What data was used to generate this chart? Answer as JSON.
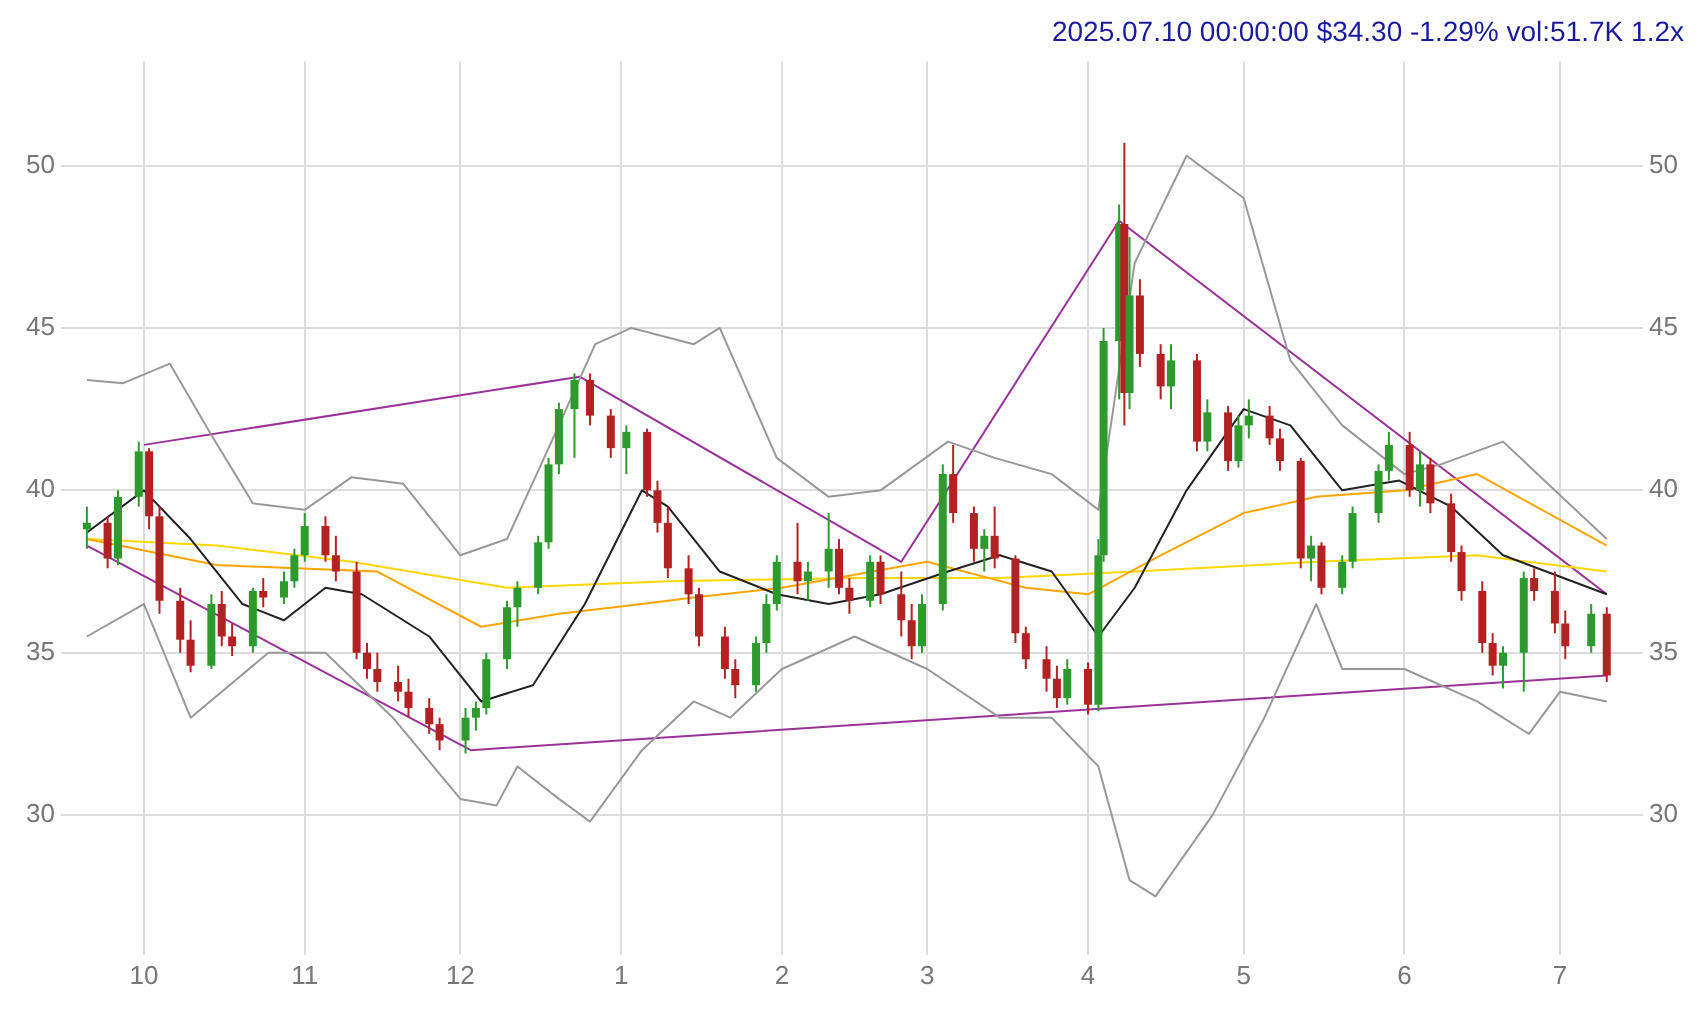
{
  "chart_data": {
    "type": "candlestick",
    "title": "2025.07.10 00:00:00 $34.30 -1.29% vol:51.7K 1.2x",
    "x": [
      "2024-09-20",
      "2024-09-24",
      "2024-09-26",
      "2024-09-30",
      "2024-10-02",
      "2024-10-04",
      "2024-10-08",
      "2024-10-10",
      "2024-10-14",
      "2024-10-16",
      "2024-10-18",
      "2024-10-22",
      "2024-10-24",
      "2024-10-28",
      "2024-10-30",
      "2024-11-01",
      "2024-11-05",
      "2024-11-07",
      "2024-11-11",
      "2024-11-13",
      "2024-11-15",
      "2024-11-19",
      "2024-11-21",
      "2024-11-25",
      "2024-11-27",
      "2024-12-02",
      "2024-12-04",
      "2024-12-06",
      "2024-12-10",
      "2024-12-12",
      "2024-12-16",
      "2024-12-18",
      "2024-12-20",
      "2024-12-23",
      "2024-12-26",
      "2024-12-30",
      "2025-01-02",
      "2025-01-06",
      "2025-01-08",
      "2025-01-10",
      "2025-01-14",
      "2025-01-16",
      "2025-01-21",
      "2025-01-23",
      "2025-01-27",
      "2025-01-29",
      "2025-01-31",
      "2025-02-04",
      "2025-02-06",
      "2025-02-10",
      "2025-02-12",
      "2025-02-14",
      "2025-02-18",
      "2025-02-20",
      "2025-02-24",
      "2025-02-26",
      "2025-02-28",
      "2025-03-04",
      "2025-03-06",
      "2025-03-10",
      "2025-03-12",
      "2025-03-14",
      "2025-03-18",
      "2025-03-20",
      "2025-03-24",
      "2025-03-26",
      "2025-03-28",
      "2025-04-01",
      "2025-04-03",
      "2025-04-04",
      "2025-04-07",
      "2025-04-08",
      "2025-04-09",
      "2025-04-11",
      "2025-04-15",
      "2025-04-17",
      "2025-04-22",
      "2025-04-24",
      "2025-04-28",
      "2025-04-30",
      "2025-05-02",
      "2025-05-06",
      "2025-05-08",
      "2025-05-12",
      "2025-05-14",
      "2025-05-16",
      "2025-05-20",
      "2025-05-22",
      "2025-05-27",
      "2025-05-29",
      "2025-06-02",
      "2025-06-04",
      "2025-06-06",
      "2025-06-10",
      "2025-06-12",
      "2025-06-16",
      "2025-06-18",
      "2025-06-20",
      "2025-06-24",
      "2025-06-26",
      "2025-06-30",
      "2025-07-02",
      "2025-07-07",
      "2025-07-10"
    ],
    "ohlc": [
      [
        38.8,
        39.5,
        38.2,
        39.0
      ],
      [
        39.0,
        39.2,
        37.6,
        37.9
      ],
      [
        37.9,
        40.0,
        37.7,
        39.8
      ],
      [
        39.8,
        41.5,
        39.5,
        41.2
      ],
      [
        41.2,
        41.3,
        38.8,
        39.2
      ],
      [
        39.2,
        39.5,
        36.2,
        36.6
      ],
      [
        36.6,
        37.0,
        35.0,
        35.4
      ],
      [
        35.4,
        36.0,
        34.4,
        34.6
      ],
      [
        34.6,
        36.8,
        34.5,
        36.5
      ],
      [
        36.5,
        36.9,
        35.2,
        35.5
      ],
      [
        35.5,
        35.9,
        34.9,
        35.2
      ],
      [
        35.2,
        37.0,
        35.0,
        36.9
      ],
      [
        36.9,
        37.3,
        36.4,
        36.7
      ],
      [
        36.7,
        37.5,
        36.5,
        37.2
      ],
      [
        37.2,
        38.2,
        37.0,
        38.0
      ],
      [
        38.0,
        39.3,
        37.8,
        38.9
      ],
      [
        38.9,
        39.2,
        37.8,
        38.0
      ],
      [
        38.0,
        38.6,
        37.2,
        37.5
      ],
      [
        37.5,
        37.8,
        34.8,
        35.0
      ],
      [
        35.0,
        35.3,
        34.2,
        34.5
      ],
      [
        34.5,
        35.0,
        33.8,
        34.1
      ],
      [
        34.1,
        34.6,
        33.5,
        33.8
      ],
      [
        33.8,
        34.2,
        33.0,
        33.3
      ],
      [
        33.3,
        33.6,
        32.5,
        32.8
      ],
      [
        32.8,
        33.0,
        32.0,
        32.3
      ],
      [
        32.3,
        33.3,
        31.9,
        33.0
      ],
      [
        33.0,
        33.5,
        32.6,
        33.3
      ],
      [
        33.3,
        35.0,
        33.1,
        34.8
      ],
      [
        34.8,
        36.6,
        34.5,
        36.4
      ],
      [
        36.4,
        37.2,
        35.8,
        37.0
      ],
      [
        37.0,
        38.6,
        36.8,
        38.4
      ],
      [
        38.4,
        41.0,
        38.2,
        40.8
      ],
      [
        40.8,
        42.7,
        40.5,
        42.5
      ],
      [
        42.5,
        43.6,
        41.0,
        43.4
      ],
      [
        43.4,
        43.6,
        42.0,
        42.3
      ],
      [
        42.3,
        42.5,
        41.0,
        41.3
      ],
      [
        41.3,
        42.0,
        40.5,
        41.8
      ],
      [
        41.8,
        41.9,
        39.8,
        40.0
      ],
      [
        40.0,
        40.3,
        38.7,
        39.0
      ],
      [
        39.0,
        39.5,
        37.3,
        37.6
      ],
      [
        37.6,
        38.0,
        36.5,
        36.8
      ],
      [
        36.8,
        37.0,
        35.2,
        35.5
      ],
      [
        35.5,
        35.8,
        34.2,
        34.5
      ],
      [
        34.5,
        34.8,
        33.6,
        34.0
      ],
      [
        34.0,
        35.5,
        33.8,
        35.3
      ],
      [
        35.3,
        36.8,
        35.0,
        36.5
      ],
      [
        36.5,
        38.0,
        36.3,
        37.8
      ],
      [
        37.8,
        39.0,
        36.8,
        37.2
      ],
      [
        37.2,
        37.8,
        36.6,
        37.5
      ],
      [
        37.5,
        39.3,
        37.0,
        38.2
      ],
      [
        38.2,
        38.5,
        36.8,
        37.0
      ],
      [
        37.0,
        37.3,
        36.2,
        36.6
      ],
      [
        36.6,
        38.0,
        36.4,
        37.8
      ],
      [
        37.8,
        38.0,
        36.5,
        36.8
      ],
      [
        36.8,
        37.5,
        35.5,
        36.0
      ],
      [
        36.0,
        36.5,
        34.8,
        35.2
      ],
      [
        35.2,
        36.8,
        35.0,
        36.5
      ],
      [
        36.5,
        40.8,
        36.3,
        40.5
      ],
      [
        40.5,
        41.4,
        39.0,
        39.3
      ],
      [
        39.3,
        39.5,
        37.8,
        38.2
      ],
      [
        38.2,
        38.8,
        37.5,
        38.6
      ],
      [
        38.6,
        39.5,
        37.6,
        37.9
      ],
      [
        37.9,
        38.0,
        35.3,
        35.6
      ],
      [
        35.6,
        35.8,
        34.5,
        34.8
      ],
      [
        34.8,
        35.2,
        33.8,
        34.2
      ],
      [
        34.2,
        34.6,
        33.3,
        33.6
      ],
      [
        33.6,
        34.8,
        33.4,
        34.5
      ],
      [
        34.5,
        34.7,
        33.1,
        33.4
      ],
      [
        33.4,
        38.5,
        33.2,
        38.0
      ],
      [
        38.0,
        45.0,
        37.8,
        44.6
      ],
      [
        44.6,
        48.8,
        42.8,
        48.2
      ],
      [
        48.2,
        50.7,
        42.0,
        43.0
      ],
      [
        43.0,
        47.8,
        42.5,
        46.0
      ],
      [
        46.0,
        46.5,
        43.8,
        44.2
      ],
      [
        44.2,
        44.5,
        42.8,
        43.2
      ],
      [
        43.2,
        44.5,
        42.5,
        44.0
      ],
      [
        44.0,
        44.2,
        41.2,
        41.5
      ],
      [
        41.5,
        42.8,
        41.2,
        42.4
      ],
      [
        42.4,
        42.6,
        40.6,
        40.9
      ],
      [
        40.9,
        42.3,
        40.7,
        42.0
      ],
      [
        42.0,
        42.8,
        41.6,
        42.3
      ],
      [
        42.3,
        42.6,
        41.4,
        41.6
      ],
      [
        41.6,
        41.9,
        40.6,
        40.9
      ],
      [
        40.9,
        41.0,
        37.6,
        37.9
      ],
      [
        37.9,
        38.6,
        37.2,
        38.3
      ],
      [
        38.3,
        38.4,
        36.8,
        37.0
      ],
      [
        37.0,
        38.0,
        36.8,
        37.8
      ],
      [
        37.8,
        39.5,
        37.6,
        39.3
      ],
      [
        39.3,
        40.8,
        39.0,
        40.6
      ],
      [
        40.6,
        41.8,
        40.3,
        41.4
      ],
      [
        41.4,
        41.8,
        39.8,
        40.0
      ],
      [
        40.0,
        41.2,
        39.5,
        40.8
      ],
      [
        40.8,
        41.0,
        39.3,
        39.6
      ],
      [
        39.6,
        39.9,
        37.8,
        38.1
      ],
      [
        38.1,
        38.3,
        36.6,
        36.9
      ],
      [
        36.9,
        37.2,
        35.0,
        35.3
      ],
      [
        35.3,
        35.6,
        34.3,
        34.6
      ],
      [
        34.6,
        35.2,
        33.9,
        35.0
      ],
      [
        35.0,
        37.5,
        33.8,
        37.3
      ],
      [
        37.3,
        37.6,
        36.6,
        36.9
      ],
      [
        36.9,
        37.5,
        35.6,
        35.9
      ],
      [
        35.9,
        36.3,
        34.8,
        35.2
      ],
      [
        35.2,
        36.5,
        35.0,
        36.2
      ],
      [
        36.2,
        36.4,
        34.1,
        34.3
      ]
    ],
    "colors": [
      "#2e9a2e",
      "#b22222",
      "#2e9a2e",
      "#2e9a2e",
      "#b22222",
      "#b22222",
      "#b22222",
      "#b22222",
      "#2e9a2e",
      "#b22222",
      "#b22222",
      "#2e9a2e",
      "#b22222",
      "#2e9a2e",
      "#2e9a2e",
      "#2e9a2e",
      "#b22222",
      "#b22222",
      "#b22222",
      "#b22222",
      "#b22222",
      "#b22222",
      "#b22222",
      "#b22222",
      "#b22222",
      "#2e9a2e",
      "#2e9a2e",
      "#2e9a2e",
      "#2e9a2e",
      "#2e9a2e",
      "#2e9a2e",
      "#2e9a2e",
      "#2e9a2e",
      "#2e9a2e",
      "#b22222",
      "#b22222",
      "#2e9a2e",
      "#b22222",
      "#b22222",
      "#b22222",
      "#b22222",
      "#b22222",
      "#b22222",
      "#b22222",
      "#2e9a2e",
      "#2e9a2e",
      "#2e9a2e",
      "#b22222",
      "#2e9a2e",
      "#2e9a2e",
      "#b22222",
      "#b22222",
      "#2e9a2e",
      "#b22222",
      "#b22222",
      "#b22222",
      "#2e9a2e",
      "#2e9a2e",
      "#b22222",
      "#b22222",
      "#2e9a2e",
      "#b22222",
      "#b22222",
      "#b22222",
      "#b22222",
      "#b22222",
      "#2e9a2e",
      "#b22222",
      "#2e9a2e",
      "#2e9a2e",
      "#2e9a2e",
      "#b22222",
      "#2e9a2e",
      "#b22222",
      "#b22222",
      "#2e9a2e",
      "#b22222",
      "#2e9a2e",
      "#b22222",
      "#2e9a2e",
      "#2e9a2e",
      "#b22222",
      "#b22222",
      "#b22222",
      "#2e9a2e",
      "#b22222",
      "#2e9a2e",
      "#2e9a2e",
      "#2e9a2e",
      "#2e9a2e",
      "#b22222",
      "#2e9a2e",
      "#b22222",
      "#b22222",
      "#b22222",
      "#b22222",
      "#b22222",
      "#2e9a2e",
      "#2e9a2e",
      "#b22222",
      "#b22222",
      "#b22222",
      "#2e9a2e",
      "#b22222"
    ],
    "series": [
      {
        "type": "line",
        "color": "#999999",
        "x": [
          "2024-09-20",
          "2024-09-27",
          "2024-10-06",
          "2024-10-14",
          "2024-10-22",
          "2024-11-01",
          "2024-11-10",
          "2024-11-20",
          "2024-12-01",
          "2024-12-10",
          "2024-12-20",
          "2024-12-27",
          "2025-01-03",
          "2025-01-15",
          "2025-01-20",
          "2025-01-31",
          "2025-02-10",
          "2025-02-20",
          "2025-03-05",
          "2025-03-14",
          "2025-03-25",
          "2025-04-03",
          "2025-04-10",
          "2025-04-20",
          "2025-05-01",
          "2025-05-10",
          "2025-05-20",
          "2025-06-01",
          "2025-06-08",
          "2025-06-20",
          "2025-07-10"
        ],
        "values": [
          43.4,
          43.3,
          43.9,
          41.7,
          39.6,
          39.4,
          40.4,
          40.2,
          38.0,
          38.5,
          42.0,
          44.5,
          45.0,
          44.5,
          45.0,
          41.0,
          39.8,
          40.0,
          41.5,
          41.0,
          40.5,
          39.4,
          47.0,
          50.3,
          49.0,
          44.0,
          42.0,
          40.5,
          40.8,
          41.5,
          38.5
        ]
      },
      {
        "type": "line",
        "color": "#999999",
        "x": [
          "2024-09-20",
          "2024-10-01",
          "2024-10-10",
          "2024-10-25",
          "2024-11-05",
          "2024-11-18",
          "2024-12-01",
          "2024-12-08",
          "2024-12-12",
          "2024-12-20",
          "2024-12-26",
          "2025-01-05",
          "2025-01-15",
          "2025-01-22",
          "2025-02-01",
          "2025-02-15",
          "2025-03-01",
          "2025-03-15",
          "2025-03-25",
          "2025-04-03",
          "2025-04-09",
          "2025-04-14",
          "2025-04-25",
          "2025-05-05",
          "2025-05-15",
          "2025-05-20",
          "2025-06-01",
          "2025-06-15",
          "2025-06-25",
          "2025-07-01",
          "2025-07-10"
        ],
        "values": [
          35.5,
          36.5,
          33.0,
          35.0,
          35.0,
          33.0,
          30.5,
          30.3,
          31.5,
          30.5,
          29.8,
          32.0,
          33.5,
          33.0,
          34.5,
          35.5,
          34.5,
          33.0,
          33.0,
          31.5,
          28.0,
          27.5,
          30.0,
          33.0,
          36.5,
          34.5,
          34.5,
          33.5,
          32.5,
          33.8,
          33.5
        ]
      },
      {
        "type": "line",
        "color": "#222222",
        "x": [
          "2024-09-20",
          "2024-10-01",
          "2024-10-10",
          "2024-10-20",
          "2024-10-28",
          "2024-11-05",
          "2024-11-12",
          "2024-11-25",
          "2024-12-05",
          "2024-12-15",
          "2024-12-25",
          "2025-01-05",
          "2025-01-10",
          "2025-01-20",
          "2025-01-31",
          "2025-02-10",
          "2025-02-20",
          "2025-03-05",
          "2025-03-15",
          "2025-03-25",
          "2025-04-03",
          "2025-04-10",
          "2025-04-20",
          "2025-05-01",
          "2025-05-10",
          "2025-05-20",
          "2025-05-31",
          "2025-06-10",
          "2025-06-20",
          "2025-07-10"
        ],
        "values": [
          38.7,
          40.0,
          38.5,
          36.5,
          36.0,
          37.0,
          36.8,
          35.5,
          33.5,
          34.0,
          36.5,
          40.0,
          39.5,
          37.5,
          36.8,
          36.5,
          36.8,
          37.5,
          38.0,
          37.5,
          35.5,
          37.0,
          40.0,
          42.5,
          42.0,
          40.0,
          40.3,
          39.5,
          38.0,
          36.8
        ]
      },
      {
        "type": "line",
        "color": "#ffa500",
        "x": [
          "2024-09-20",
          "2024-10-15",
          "2024-11-15",
          "2024-12-05",
          "2024-12-20",
          "2025-01-05",
          "2025-01-15",
          "2025-02-01",
          "2025-03-01",
          "2025-03-20",
          "2025-04-01",
          "2025-04-15",
          "2025-05-01",
          "2025-05-15",
          "2025-06-01",
          "2025-06-15",
          "2025-07-10"
        ],
        "values": [
          38.5,
          37.7,
          37.5,
          35.8,
          36.2,
          36.5,
          36.7,
          37.0,
          37.8,
          37.0,
          36.8,
          38.0,
          39.3,
          39.8,
          40.0,
          40.5,
          38.3
        ]
      },
      {
        "type": "line",
        "color": "#ffd700",
        "x": [
          "2024-09-20",
          "2024-10-15",
          "2024-11-10",
          "2024-12-10",
          "2025-01-10",
          "2025-02-15",
          "2025-03-15",
          "2025-04-10",
          "2025-05-15",
          "2025-06-15",
          "2025-07-10"
        ],
        "values": [
          38.5,
          38.3,
          37.8,
          37.0,
          37.2,
          37.3,
          37.3,
          37.5,
          37.8,
          38.0,
          37.5
        ]
      },
      {
        "type": "line",
        "color": "#993399",
        "x": [
          "2024-10-01",
          "2024-12-24",
          "2025-02-24",
          "2025-04-07",
          "2025-07-10"
        ],
        "values": [
          41.4,
          43.5,
          37.8,
          48.3,
          36.8
        ]
      },
      {
        "type": "line",
        "color": "#993399",
        "x": [
          "2024-09-20",
          "2024-12-03",
          "2025-07-10"
        ],
        "values": [
          38.3,
          32.0,
          34.3
        ]
      }
    ],
    "marker": "none",
    "xlim": [
      "2024-09-15",
      "2025-07-17"
    ],
    "xticks": [
      {
        "value": "2024-10-01",
        "label": "10"
      },
      {
        "value": "2024-11-01",
        "label": "11"
      },
      {
        "value": "2024-12-01",
        "label": "12"
      },
      {
        "value": "2025-01-01",
        "label": "1"
      },
      {
        "value": "2025-02-01",
        "label": "2"
      },
      {
        "value": "2025-03-01",
        "label": "3"
      },
      {
        "value": "2025-04-01",
        "label": "4"
      },
      {
        "value": "2025-05-01",
        "label": "5"
      },
      {
        "value": "2025-06-01",
        "label": "6"
      },
      {
        "value": "2025-07-01",
        "label": "7"
      }
    ],
    "ylim": [
      25.7,
      53.2
    ],
    "yticks": [
      30,
      35,
      40,
      45,
      50
    ],
    "y2lim": [
      25.7,
      53.2
    ],
    "y2ticks": [
      30,
      35,
      40,
      45,
      50
    ],
    "grid": true,
    "legend": false
  }
}
